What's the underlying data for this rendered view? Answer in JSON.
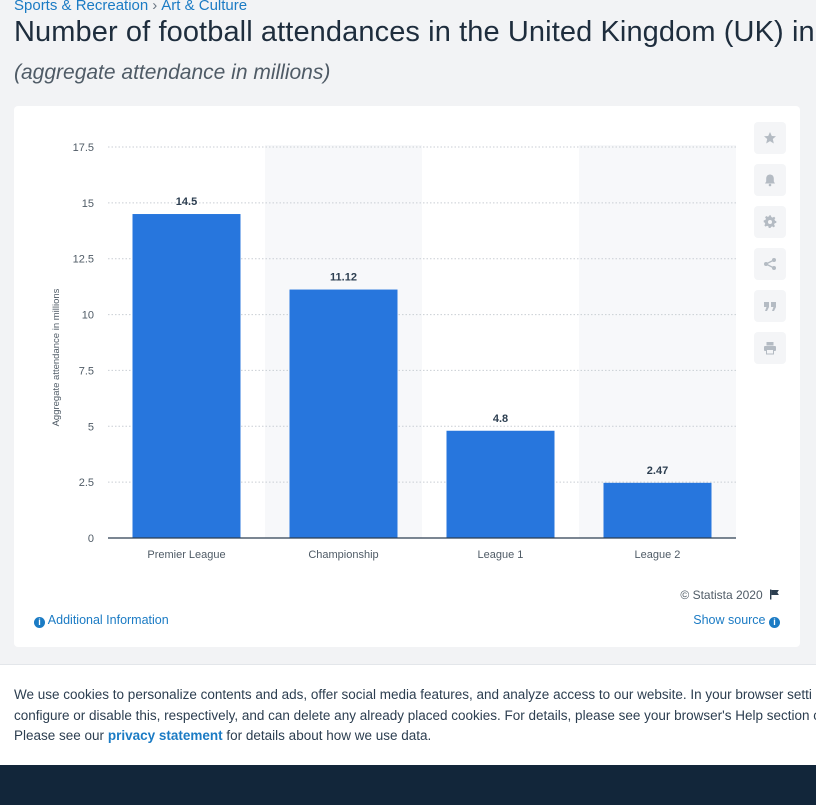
{
  "breadcrumb": {
    "item1": "Sports & Recreation",
    "separator": "›",
    "item2": "Art & Culture"
  },
  "title": "Number of football attendances in the United Kingdom (UK) in",
  "subtitle": "(aggregate attendance in millions)",
  "chart_data": {
    "type": "bar",
    "categories": [
      "Premier League",
      "Championship",
      "League 1",
      "League 2"
    ],
    "values": [
      14.5,
      11.12,
      4.8,
      2.47
    ],
    "value_labels": [
      "14.5",
      "11.12",
      "4.8",
      "2.47"
    ],
    "ylabel": "Aggregate attendance in millions",
    "xlabel": "",
    "ylim": [
      0,
      17.5
    ],
    "yticks": [
      0,
      2.5,
      5,
      7.5,
      10,
      12.5,
      15,
      17.5
    ],
    "ytick_labels": [
      "0",
      "2.5",
      "5",
      "7.5",
      "10",
      "12.5",
      "15",
      "17.5"
    ],
    "grid": true,
    "bar_color": "#2776dd"
  },
  "toolbar": {
    "icons": [
      "star-icon",
      "bell-icon",
      "gear-icon",
      "share-icon",
      "quote-icon",
      "print-icon"
    ]
  },
  "copyright": "© Statista 2020",
  "links": {
    "additional_info": "Additional Information",
    "show_source": "Show source"
  },
  "cookie": {
    "line1": "We use cookies to personalize contents and ads, offer social media features, and analyze access to our website. In your browser setti",
    "line2": "configure or disable this, respectively, and can delete any already placed cookies. For details, please see your browser's Help section c",
    "line3_prefix": "Please see our",
    "privacy_link": "privacy statement",
    "line3_suffix": "for details about how we use data."
  },
  "colors": {
    "accent": "#1b7bc4",
    "bar": "#2776dd",
    "footer": "#12263a"
  }
}
